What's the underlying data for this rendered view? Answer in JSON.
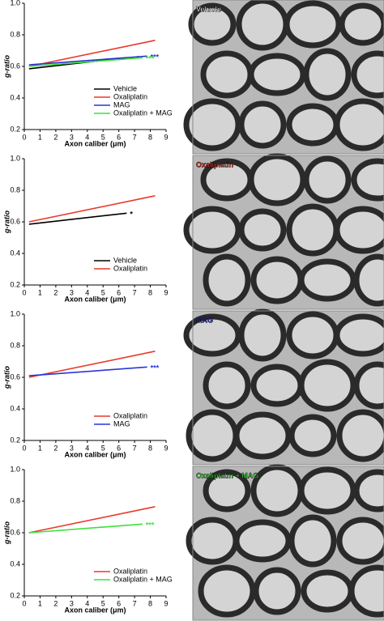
{
  "chart_data": [
    {
      "type": "line",
      "xlabel": "Axon caliber (μm)",
      "ylabel": "g-ratio",
      "xlim": [
        0,
        9
      ],
      "ylim": [
        0.2,
        1.0
      ],
      "xticks": [
        0,
        1,
        2,
        3,
        4,
        5,
        6,
        7,
        8,
        9
      ],
      "yticks": [
        0.2,
        0.4,
        0.6,
        0.8,
        {
          "value": 1.0,
          "label": "1.0"
        }
      ],
      "image_label": "Vehicle",
      "image_label_color": "#ffffff",
      "series": [
        {
          "name": "Vehicle",
          "color": "#000000",
          "x": [
            0.3,
            6.5
          ],
          "values": [
            0.585,
            0.655
          ],
          "annotation": "*"
        },
        {
          "name": "Oxaliplatin",
          "color": "#e8392a",
          "x": [
            0.3,
            8.3
          ],
          "values": [
            0.6,
            0.765
          ]
        },
        {
          "name": "MAG",
          "color": "#2a35d6",
          "x": [
            0.3,
            7.8
          ],
          "values": [
            0.61,
            0.665
          ],
          "annotation": "***"
        },
        {
          "name": "Oxaliplatin + MAG",
          "color": "#3ee03a",
          "x": [
            0.3,
            7.5
          ],
          "values": [
            0.6,
            0.655
          ],
          "annotation": "***"
        }
      ]
    },
    {
      "type": "line",
      "xlabel": "Axon caliber (μm)",
      "ylabel": "g-ratio",
      "xlim": [
        0,
        9
      ],
      "ylim": [
        0.2,
        1.0
      ],
      "xticks": [
        0,
        1,
        2,
        3,
        4,
        5,
        6,
        7,
        8,
        9
      ],
      "yticks": [
        0.2,
        0.4,
        0.6,
        0.8,
        {
          "value": 1.0,
          "label": "1.0"
        }
      ],
      "image_label": "Oxaliplatin",
      "image_label_color": "#e8392a",
      "series": [
        {
          "name": "Vehicle",
          "color": "#000000",
          "x": [
            0.3,
            6.5
          ],
          "values": [
            0.585,
            0.655
          ],
          "annotation": "*"
        },
        {
          "name": "Oxaliplatin",
          "color": "#e8392a",
          "x": [
            0.3,
            8.3
          ],
          "values": [
            0.6,
            0.765
          ]
        }
      ]
    },
    {
      "type": "line",
      "xlabel": "Axon caliber (μm)",
      "ylabel": "g-ratio",
      "xlim": [
        0,
        9
      ],
      "ylim": [
        0.2,
        1.0
      ],
      "xticks": [
        0,
        1,
        2,
        3,
        4,
        5,
        6,
        7,
        8,
        9
      ],
      "yticks": [
        0.2,
        0.4,
        0.6,
        0.8,
        {
          "value": 1.0,
          "label": "1.0"
        }
      ],
      "image_label": "MAG",
      "image_label_color": "#2a35d6",
      "series": [
        {
          "name": "Oxaliplatin",
          "color": "#e8392a",
          "x": [
            0.3,
            8.3
          ],
          "values": [
            0.6,
            0.765
          ]
        },
        {
          "name": "MAG",
          "color": "#2a35d6",
          "x": [
            0.3,
            7.8
          ],
          "values": [
            0.61,
            0.665
          ],
          "annotation": "***"
        }
      ]
    },
    {
      "type": "line",
      "xlabel": "Axon caliber (μm)",
      "ylabel": "g-ratio",
      "xlim": [
        0,
        9
      ],
      "ylim": [
        0.2,
        1.0
      ],
      "xticks": [
        0,
        1,
        2,
        3,
        4,
        5,
        6,
        7,
        8,
        9
      ],
      "yticks": [
        0.2,
        0.4,
        0.6,
        0.8,
        {
          "value": 1.0,
          "label": "1.0"
        }
      ],
      "image_label": "Oxaliplatin + MAG",
      "image_label_color": "#3ee03a",
      "series": [
        {
          "name": "Oxaliplatin",
          "color": "#e8392a",
          "x": [
            0.3,
            8.3
          ],
          "values": [
            0.6,
            0.765
          ]
        },
        {
          "name": "Oxaliplatin + MAG",
          "color": "#3ee03a",
          "x": [
            0.3,
            7.5
          ],
          "values": [
            0.6,
            0.655
          ],
          "annotation": "***"
        }
      ]
    }
  ]
}
